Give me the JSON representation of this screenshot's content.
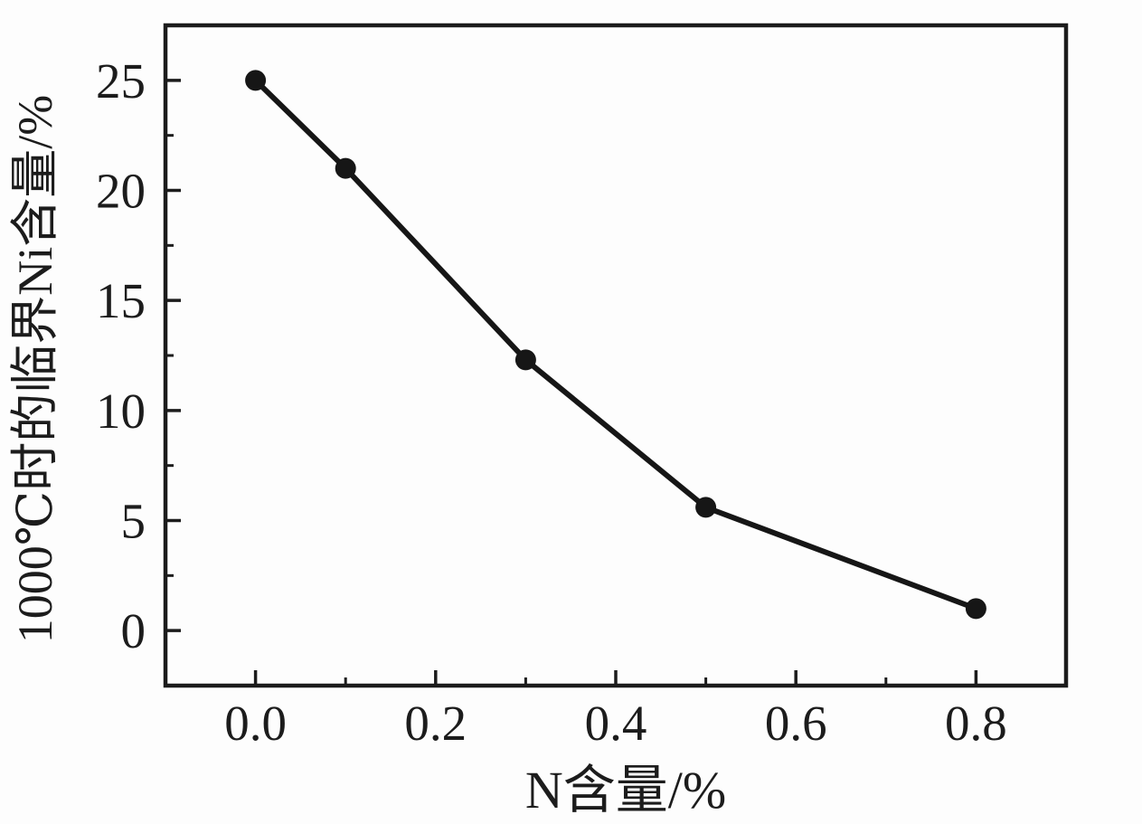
{
  "chart_data": {
    "type": "line",
    "title": "",
    "xlabel": "N含量/%",
    "ylabel": "1000℃时的临界Ni含量/%",
    "series": [
      {
        "x": [
          0.0,
          0.1,
          0.3,
          0.5,
          0.8
        ],
        "y": [
          25.0,
          21.0,
          12.3,
          5.6,
          1.0
        ]
      }
    ],
    "xlim": [
      -0.1,
      0.9
    ],
    "ylim": [
      -2.5,
      27.5
    ],
    "x_major_ticks": [
      0.0,
      0.2,
      0.4,
      0.6,
      0.8
    ],
    "x_major_tick_labels": [
      "0.0",
      "0.2",
      "0.4",
      "0.6",
      "0.8"
    ],
    "x_minor_ticks": [
      0.1,
      0.3,
      0.5,
      0.7
    ],
    "y_major_ticks": [
      0,
      5,
      10,
      15,
      20,
      25
    ],
    "y_major_tick_labels": [
      "0",
      "5",
      "10",
      "15",
      "20",
      "25"
    ],
    "y_minor_ticks": [
      2.5,
      7.5,
      12.5,
      17.5,
      22.5
    ],
    "grid": false,
    "legend_position": "none",
    "marker": "circle",
    "line_color": "#161616",
    "marker_color": "#161616",
    "axis_color": "#1c1c1c",
    "text_color": "#1c1c1c",
    "background_color": "#fdfdfd"
  }
}
